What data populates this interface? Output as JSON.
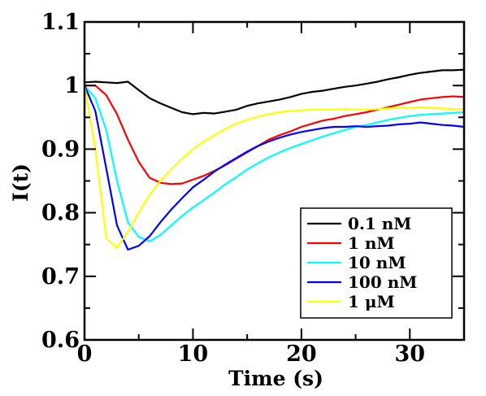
{
  "chart_data": {
    "type": "line",
    "title": "",
    "xlabel": "Time (s)",
    "ylabel": "I(t)",
    "xlim": [
      0,
      35
    ],
    "ylim": [
      0.6,
      1.1
    ],
    "xticks": [
      0,
      10,
      20,
      30
    ],
    "xtick_labels": [
      "0",
      "10",
      "20",
      "30"
    ],
    "yticks": [
      0.6,
      0.7,
      0.8,
      0.9,
      1.0,
      1.1
    ],
    "ytick_labels": [
      "0.6",
      "0.7",
      "0.8",
      "0.9",
      "1",
      "1.1"
    ],
    "grid": false,
    "legend_position": "bottom-right",
    "series": [
      {
        "name": "0.1 nM",
        "color": "#000000",
        "x": [
          0,
          1,
          2,
          3,
          4,
          5,
          6,
          7,
          8,
          9,
          10,
          11,
          12,
          13,
          14,
          15,
          16,
          17,
          18,
          19,
          20,
          21,
          22,
          23,
          24,
          25,
          26,
          27,
          28,
          29,
          30,
          31,
          32,
          33,
          34,
          35
        ],
        "y": [
          1.005,
          1.006,
          1.005,
          1.004,
          1.006,
          0.993,
          0.98,
          0.972,
          0.965,
          0.958,
          0.955,
          0.957,
          0.956,
          0.959,
          0.962,
          0.968,
          0.972,
          0.975,
          0.978,
          0.982,
          0.987,
          0.99,
          0.992,
          0.995,
          0.998,
          1.0,
          1.003,
          1.006,
          1.01,
          1.013,
          1.017,
          1.02,
          1.022,
          1.024,
          1.024,
          1.025
        ]
      },
      {
        "name": "1 nM",
        "color": "#ff0000",
        "x": [
          0,
          1,
          2,
          3,
          4,
          5,
          6,
          7,
          8,
          9,
          10,
          11,
          12,
          13,
          14,
          15,
          16,
          17,
          18,
          19,
          20,
          21,
          22,
          23,
          24,
          25,
          26,
          27,
          28,
          29,
          30,
          31,
          32,
          33,
          34,
          35
        ],
        "y": [
          1.0,
          1.0,
          0.985,
          0.955,
          0.915,
          0.88,
          0.855,
          0.847,
          0.845,
          0.846,
          0.852,
          0.858,
          0.866,
          0.875,
          0.885,
          0.895,
          0.905,
          0.915,
          0.922,
          0.928,
          0.935,
          0.94,
          0.945,
          0.948,
          0.952,
          0.955,
          0.958,
          0.962,
          0.966,
          0.97,
          0.974,
          0.978,
          0.98,
          0.982,
          0.983,
          0.982
        ]
      },
      {
        "name": "10 nM",
        "color": "#00ffff",
        "x": [
          0,
          1,
          2,
          3,
          4,
          5,
          6,
          7,
          8,
          9,
          10,
          11,
          12,
          13,
          14,
          15,
          16,
          17,
          18,
          19,
          20,
          21,
          22,
          23,
          24,
          25,
          26,
          27,
          28,
          29,
          30,
          31,
          32,
          33,
          34,
          35
        ],
        "y": [
          1.0,
          0.98,
          0.93,
          0.85,
          0.785,
          0.762,
          0.755,
          0.765,
          0.78,
          0.795,
          0.808,
          0.82,
          0.832,
          0.845,
          0.856,
          0.868,
          0.878,
          0.887,
          0.895,
          0.902,
          0.908,
          0.914,
          0.92,
          0.925,
          0.93,
          0.935,
          0.938,
          0.942,
          0.946,
          0.949,
          0.952,
          0.954,
          0.955,
          0.956,
          0.957,
          0.958
        ]
      },
      {
        "name": "100 nM",
        "color": "#0000ff",
        "x": [
          0,
          1,
          2,
          3,
          4,
          5,
          6,
          7,
          8,
          9,
          10,
          11,
          12,
          13,
          14,
          15,
          16,
          17,
          18,
          19,
          20,
          21,
          22,
          23,
          24,
          25,
          26,
          27,
          28,
          29,
          30,
          31,
          32,
          33,
          34,
          35
        ],
        "y": [
          1.0,
          0.96,
          0.87,
          0.78,
          0.742,
          0.748,
          0.763,
          0.785,
          0.805,
          0.823,
          0.84,
          0.852,
          0.865,
          0.876,
          0.886,
          0.896,
          0.905,
          0.912,
          0.918,
          0.923,
          0.927,
          0.93,
          0.933,
          0.935,
          0.935,
          0.936,
          0.935,
          0.936,
          0.937,
          0.939,
          0.94,
          0.942,
          0.94,
          0.938,
          0.937,
          0.935
        ]
      },
      {
        "name": "1 μM",
        "color": "#ffff00",
        "x": [
          0,
          1,
          2,
          3,
          4,
          5,
          6,
          7,
          8,
          9,
          10,
          11,
          12,
          13,
          14,
          15,
          16,
          17,
          18,
          19,
          20,
          21,
          22,
          23,
          24,
          25,
          26,
          27,
          28,
          29,
          30,
          31,
          32,
          33,
          34,
          35
        ],
        "y": [
          1.0,
          0.9,
          0.76,
          0.745,
          0.77,
          0.8,
          0.828,
          0.85,
          0.868,
          0.885,
          0.9,
          0.912,
          0.922,
          0.932,
          0.94,
          0.946,
          0.951,
          0.955,
          0.958,
          0.96,
          0.961,
          0.962,
          0.962,
          0.962,
          0.963,
          0.962,
          0.962,
          0.963,
          0.964,
          0.965,
          0.965,
          0.966,
          0.965,
          0.964,
          0.963,
          0.963
        ]
      }
    ]
  }
}
